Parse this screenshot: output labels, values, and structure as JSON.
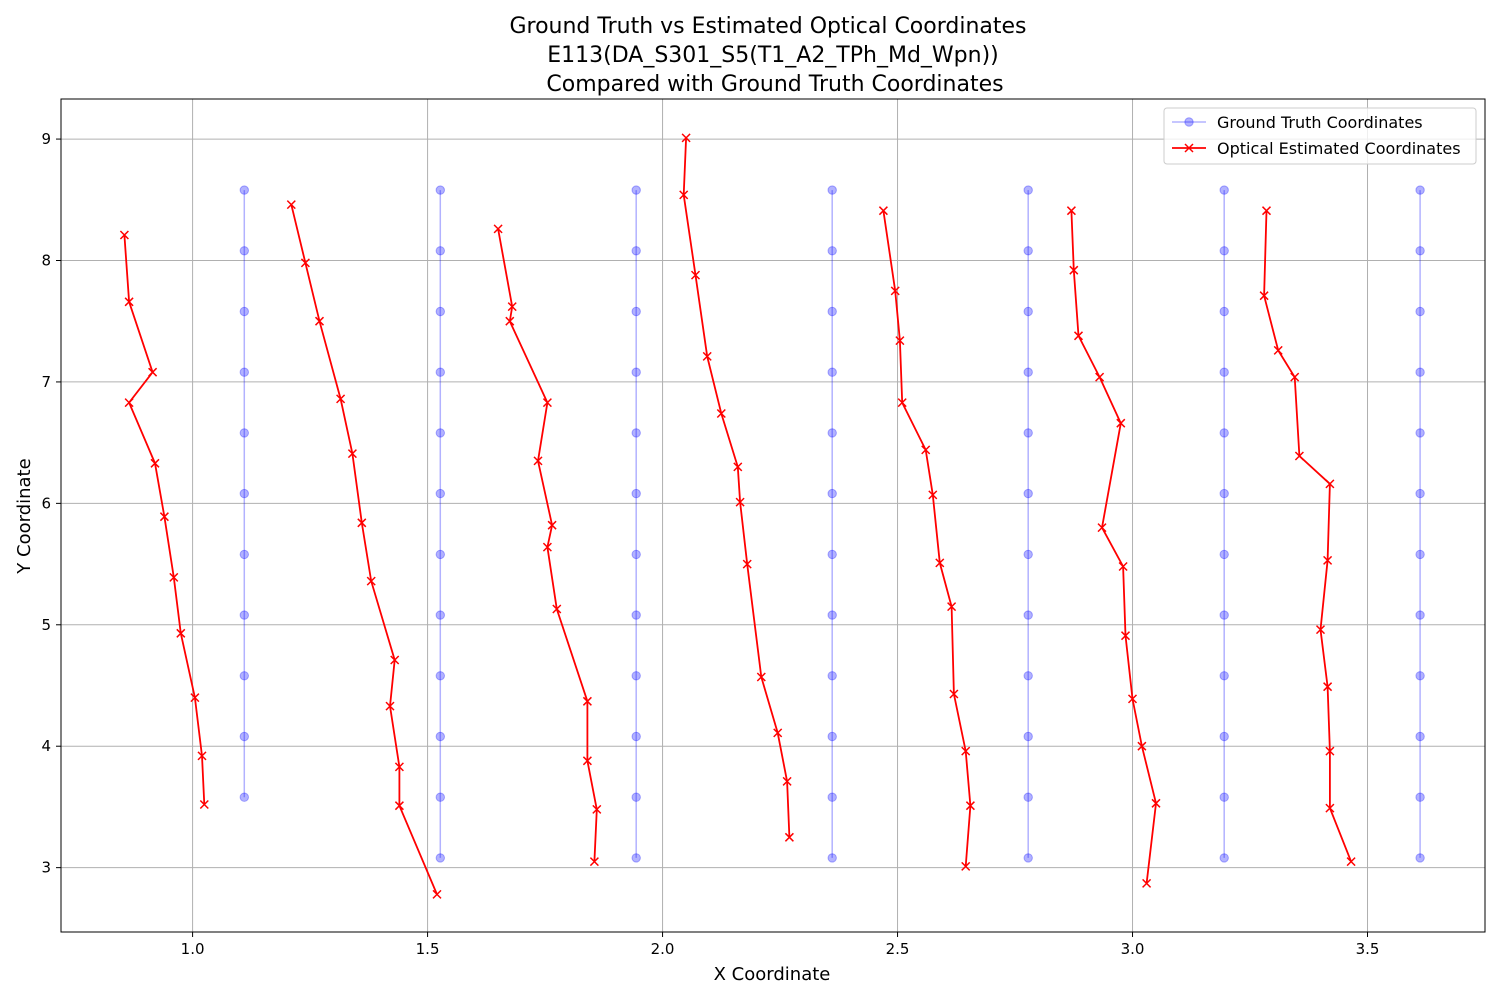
{
  "chart_data": {
    "type": "line",
    "title_lines": [
      "Ground Truth vs Estimated Optical Coordinates",
      "E113(DA_S301_S5(T1_A2_TPh_Md_Wpn))",
      "Compared with Ground Truth Coordinates"
    ],
    "xlabel": "X Coordinate",
    "ylabel": "Y Coordinate",
    "xlim": [
      0.72,
      3.75
    ],
    "ylim": [
      2.47,
      9.33
    ],
    "xticks": [
      1.0,
      1.5,
      2.0,
      2.5,
      3.0,
      3.5
    ],
    "xtick_labels": [
      "1.0",
      "1.5",
      "2.0",
      "2.5",
      "3.0",
      "3.5"
    ],
    "yticks": [
      3,
      4,
      5,
      6,
      7,
      8,
      9
    ],
    "ytick_labels": [
      "3",
      "4",
      "5",
      "6",
      "7",
      "8",
      "9"
    ],
    "grid": true,
    "legend_position": "top-right",
    "colors": {
      "ground_truth": "#0000ff",
      "estimated": "#ff0000",
      "grid": "#b0b0b0"
    },
    "series": [
      {
        "name": "Ground Truth Coordinates",
        "marker": "circle",
        "lines": [
          [
            [
              1.11,
              3.58
            ],
            [
              1.11,
              4.08
            ],
            [
              1.11,
              4.58
            ],
            [
              1.11,
              5.08
            ],
            [
              1.11,
              5.58
            ],
            [
              1.11,
              6.08
            ],
            [
              1.11,
              6.58
            ],
            [
              1.11,
              7.08
            ],
            [
              1.11,
              7.58
            ],
            [
              1.11,
              8.08
            ],
            [
              1.11,
              8.58
            ]
          ],
          [
            [
              1.527,
              3.08
            ],
            [
              1.527,
              3.58
            ],
            [
              1.527,
              4.08
            ],
            [
              1.527,
              4.58
            ],
            [
              1.527,
              5.08
            ],
            [
              1.527,
              5.58
            ],
            [
              1.527,
              6.08
            ],
            [
              1.527,
              6.58
            ],
            [
              1.527,
              7.08
            ],
            [
              1.527,
              7.58
            ],
            [
              1.527,
              8.08
            ],
            [
              1.527,
              8.58
            ]
          ],
          [
            [
              1.944,
              3.08
            ],
            [
              1.944,
              3.58
            ],
            [
              1.944,
              4.08
            ],
            [
              1.944,
              4.58
            ],
            [
              1.944,
              5.08
            ],
            [
              1.944,
              5.58
            ],
            [
              1.944,
              6.08
            ],
            [
              1.944,
              6.58
            ],
            [
              1.944,
              7.08
            ],
            [
              1.944,
              7.58
            ],
            [
              1.944,
              8.08
            ],
            [
              1.944,
              8.58
            ]
          ],
          [
            [
              2.361,
              3.08
            ],
            [
              2.361,
              3.58
            ],
            [
              2.361,
              4.08
            ],
            [
              2.361,
              4.58
            ],
            [
              2.361,
              5.08
            ],
            [
              2.361,
              5.58
            ],
            [
              2.361,
              6.08
            ],
            [
              2.361,
              6.58
            ],
            [
              2.361,
              7.08
            ],
            [
              2.361,
              7.58
            ],
            [
              2.361,
              8.08
            ],
            [
              2.361,
              8.58
            ]
          ],
          [
            [
              2.778,
              3.08
            ],
            [
              2.778,
              3.58
            ],
            [
              2.778,
              4.08
            ],
            [
              2.778,
              4.58
            ],
            [
              2.778,
              5.08
            ],
            [
              2.778,
              5.58
            ],
            [
              2.778,
              6.08
            ],
            [
              2.778,
              6.58
            ],
            [
              2.778,
              7.08
            ],
            [
              2.778,
              7.58
            ],
            [
              2.778,
              8.08
            ],
            [
              2.778,
              8.58
            ]
          ],
          [
            [
              3.195,
              3.08
            ],
            [
              3.195,
              3.58
            ],
            [
              3.195,
              4.08
            ],
            [
              3.195,
              4.58
            ],
            [
              3.195,
              5.08
            ],
            [
              3.195,
              5.58
            ],
            [
              3.195,
              6.08
            ],
            [
              3.195,
              6.58
            ],
            [
              3.195,
              7.08
            ],
            [
              3.195,
              7.58
            ],
            [
              3.195,
              8.08
            ],
            [
              3.195,
              8.58
            ]
          ],
          [
            [
              3.612,
              3.08
            ],
            [
              3.612,
              3.58
            ],
            [
              3.612,
              4.08
            ],
            [
              3.612,
              4.58
            ],
            [
              3.612,
              5.08
            ],
            [
              3.612,
              5.58
            ],
            [
              3.612,
              6.08
            ],
            [
              3.612,
              6.58
            ],
            [
              3.612,
              7.08
            ],
            [
              3.612,
              7.58
            ],
            [
              3.612,
              8.08
            ],
            [
              3.612,
              8.58
            ]
          ]
        ]
      },
      {
        "name": "Optical Estimated Coordinates",
        "marker": "x",
        "lines": [
          [
            [
              0.855,
              8.21
            ],
            [
              0.865,
              7.66
            ],
            [
              0.915,
              7.08
            ],
            [
              0.865,
              6.83
            ],
            [
              0.92,
              6.33
            ],
            [
              0.94,
              5.89
            ],
            [
              0.96,
              5.39
            ],
            [
              0.975,
              4.93
            ],
            [
              1.005,
              4.4
            ],
            [
              1.02,
              3.92
            ],
            [
              1.025,
              3.52
            ]
          ],
          [
            [
              1.21,
              8.46
            ],
            [
              1.24,
              7.98
            ],
            [
              1.27,
              7.5
            ],
            [
              1.315,
              6.86
            ],
            [
              1.34,
              6.41
            ],
            [
              1.36,
              5.84
            ],
            [
              1.38,
              5.36
            ],
            [
              1.43,
              4.71
            ],
            [
              1.42,
              4.33
            ],
            [
              1.44,
              3.83
            ],
            [
              1.44,
              3.51
            ],
            [
              1.52,
              2.78
            ]
          ],
          [
            [
              1.65,
              8.26
            ],
            [
              1.68,
              7.62
            ],
            [
              1.675,
              7.5
            ],
            [
              1.755,
              6.83
            ],
            [
              1.735,
              6.35
            ],
            [
              1.765,
              5.82
            ],
            [
              1.755,
              5.64
            ],
            [
              1.775,
              5.13
            ],
            [
              1.84,
              4.37
            ],
            [
              1.84,
              3.88
            ],
            [
              1.86,
              3.48
            ],
            [
              1.855,
              3.05
            ]
          ],
          [
            [
              2.05,
              9.01
            ],
            [
              2.045,
              8.54
            ],
            [
              2.07,
              7.88
            ],
            [
              2.095,
              7.21
            ],
            [
              2.125,
              6.74
            ],
            [
              2.16,
              6.3
            ],
            [
              2.165,
              6.01
            ],
            [
              2.18,
              5.5
            ],
            [
              2.21,
              4.57
            ],
            [
              2.245,
              4.11
            ],
            [
              2.265,
              3.71
            ],
            [
              2.27,
              3.25
            ]
          ],
          [
            [
              2.47,
              8.41
            ],
            [
              2.495,
              7.75
            ],
            [
              2.505,
              7.34
            ],
            [
              2.51,
              6.83
            ],
            [
              2.56,
              6.44
            ],
            [
              2.575,
              6.07
            ],
            [
              2.59,
              5.51
            ],
            [
              2.615,
              5.15
            ],
            [
              2.62,
              4.43
            ],
            [
              2.645,
              3.96
            ],
            [
              2.655,
              3.51
            ],
            [
              2.645,
              3.01
            ]
          ],
          [
            [
              2.87,
              8.41
            ],
            [
              2.875,
              7.92
            ],
            [
              2.885,
              7.38
            ],
            [
              2.93,
              7.04
            ],
            [
              2.975,
              6.66
            ],
            [
              2.935,
              5.8
            ],
            [
              2.98,
              5.48
            ],
            [
              2.985,
              4.91
            ],
            [
              3.0,
              4.39
            ],
            [
              3.02,
              4.0
            ],
            [
              3.05,
              3.53
            ],
            [
              3.03,
              2.87
            ]
          ],
          [
            [
              3.285,
              8.41
            ],
            [
              3.28,
              7.71
            ],
            [
              3.31,
              7.26
            ],
            [
              3.345,
              7.04
            ],
            [
              3.355,
              6.39
            ],
            [
              3.42,
              6.16
            ],
            [
              3.415,
              5.53
            ],
            [
              3.4,
              4.96
            ],
            [
              3.415,
              4.49
            ],
            [
              3.42,
              3.96
            ],
            [
              3.42,
              3.49
            ],
            [
              3.465,
              3.05
            ]
          ]
        ]
      }
    ]
  }
}
